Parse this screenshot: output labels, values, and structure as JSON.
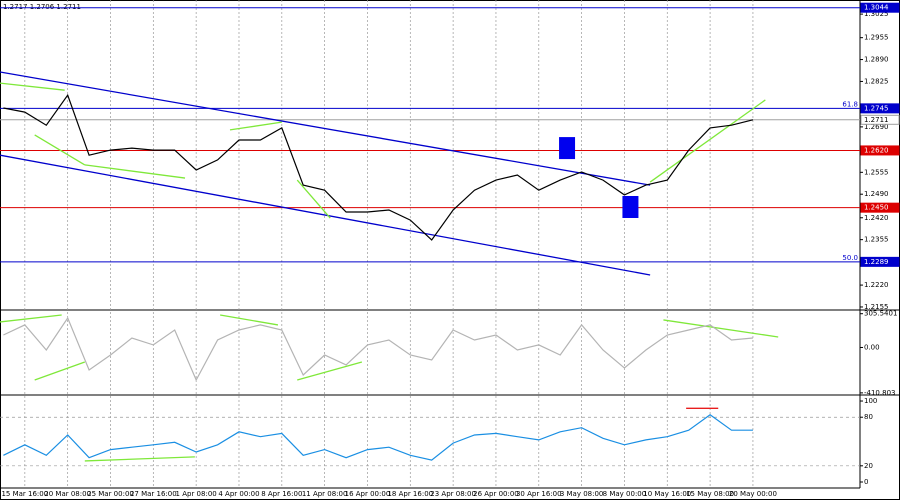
{
  "chart_data": [
    {
      "type": "line",
      "ohlc_text": "1.2717 1.2706 1.2711",
      "x": [
        -0.5,
        0,
        0.5,
        1,
        1.5,
        2,
        2.5,
        3,
        3.5,
        4,
        4.5,
        5,
        5.5,
        6,
        6.5,
        7,
        7.5,
        8,
        8.5,
        9,
        9.5,
        10,
        10.5,
        11,
        11.5,
        12,
        12.5,
        13,
        13.5,
        14,
        14.5,
        15,
        15.5,
        16,
        16.5,
        17
      ],
      "series": [
        {
          "color": "#000000",
          "values": [
            1.2746,
            1.2734,
            1.2695,
            1.2784,
            1.2606,
            1.2621,
            1.2627,
            1.2621,
            1.2621,
            1.2562,
            1.2592,
            1.2651,
            1.2651,
            1.2687,
            1.2517,
            1.2502,
            1.2437,
            1.2437,
            1.2443,
            1.2413,
            1.2354,
            1.2443,
            1.2502,
            1.2532,
            1.2547,
            1.2502,
            1.2532,
            1.2556,
            1.2532,
            1.2488,
            1.2517,
            1.2532,
            1.2621,
            1.2687,
            1.2695,
            1.2711
          ]
        }
      ],
      "ylim": [
        1.2146,
        1.3058
      ],
      "yticks": [
        1.3025,
        1.2955,
        {
          "value": 1.289,
          "label": "1.2890"
        },
        1.2825,
        {
          "value": 1.269,
          "label": "1.2690"
        },
        1.2555,
        {
          "value": 1.249,
          "label": "1.2490"
        },
        {
          "value": 1.242,
          "label": "1.2420"
        },
        1.2355,
        {
          "value": 1.222,
          "label": "1.2220"
        },
        1.2155
      ],
      "levels": [
        {
          "value": 1.3044,
          "label": "1.3044",
          "color": "#0000cc",
          "text_color": "#ffffff"
        },
        {
          "value": 1.2745,
          "label": "1.2745",
          "color": "#0000cc",
          "text_color": "#ffffff",
          "fib_label": "61.8"
        },
        {
          "value": 1.2711,
          "label": "1.2711",
          "color": "#a0a0a0",
          "text_color": "#000000",
          "box_color": "#ffffff"
        },
        {
          "value": 1.262,
          "label": "1.2620",
          "color": "#dd0000",
          "text_color": "#ffffff"
        },
        {
          "value": 1.245,
          "label": "1.2450",
          "color": "#dd0000",
          "text_color": "#ffffff"
        },
        {
          "value": 1.2289,
          "label": "1.2289",
          "color": "#0000cc",
          "text_color": "#ffffff",
          "fib_label": "50.0"
        }
      ],
      "trendlines": [
        {
          "x": [
            -0.58,
            14.6
          ],
          "y": [
            1.2853,
            1.2517
          ],
          "color": "#0000cc"
        },
        {
          "x": [
            -0.58,
            14.6
          ],
          "y": [
            1.2606,
            1.225
          ],
          "color": "#0000cc"
        },
        {
          "x": [
            -0.58,
            0.93
          ],
          "y": [
            1.282,
            1.2799
          ],
          "color": "#7fe83a"
        },
        {
          "x": [
            0.23,
            1.4
          ],
          "y": [
            1.2666,
            1.2577
          ],
          "color": "#7fe83a"
        },
        {
          "x": [
            1.4,
            3.74
          ],
          "y": [
            1.2577,
            1.2538
          ],
          "color": "#7fe83a"
        },
        {
          "x": [
            4.79,
            6.0
          ],
          "y": [
            1.2681,
            1.2704
          ],
          "color": "#7fe83a"
        },
        {
          "x": [
            6.36,
            7.13
          ],
          "y": [
            1.2532,
            1.2419
          ],
          "color": "#7fe83a"
        },
        {
          "x": [
            14.6,
            17.29
          ],
          "y": [
            1.2526,
            1.277
          ],
          "color": "#7fe83a"
        }
      ],
      "markers": [
        {
          "x": 12.66,
          "y": 1.2627,
          "color": "#0000ee"
        },
        {
          "x": 14.14,
          "y": 1.2452,
          "color": "#0000ee"
        }
      ]
    },
    {
      "type": "line",
      "x": [
        -0.5,
        0,
        0.5,
        1,
        1.5,
        2,
        2.5,
        3,
        3.5,
        4,
        4.5,
        5,
        5.5,
        6,
        6.5,
        7,
        7.5,
        8,
        8.5,
        9,
        9.5,
        10,
        10.5,
        11,
        11.5,
        12,
        12.5,
        13,
        13.5,
        14,
        14.5,
        15,
        15.5,
        16,
        16.5,
        17
      ],
      "series": [
        {
          "color": "#b4b4b4",
          "values": [
            113,
            204,
            -23,
            267,
            -204,
            -68,
            86,
            23,
            158,
            -294,
            68,
            158,
            204,
            158,
            -249,
            -68,
            -158,
            23,
            68,
            -68,
            -113,
            158,
            68,
            113,
            -23,
            23,
            -68,
            204,
            -23,
            -186,
            -23,
            113,
            158,
            204,
            68,
            86
          ]
        }
      ],
      "ylim": [
        -430,
        330
      ],
      "yticks": [
        305.5401,
        {
          "value": 0,
          "label": "0.00"
        },
        -410.803
      ],
      "trendlines": [
        {
          "x": [
            -0.58,
            0.86
          ],
          "y": [
            231,
            294
          ],
          "color": "#7fe83a"
        },
        {
          "x": [
            0.23,
            1.4
          ],
          "y": [
            -294,
            -131
          ],
          "color": "#7fe83a"
        },
        {
          "x": [
            4.56,
            5.91
          ],
          "y": [
            294,
            204
          ],
          "color": "#7fe83a"
        },
        {
          "x": [
            6.36,
            7.87
          ],
          "y": [
            -294,
            -131
          ],
          "color": "#7fe83a"
        },
        {
          "x": [
            14.91,
            17.59
          ],
          "y": [
            249,
            95
          ],
          "color": "#7fe83a"
        }
      ]
    },
    {
      "type": "line",
      "x": [
        -0.5,
        0,
        0.5,
        1,
        1.5,
        2,
        2.5,
        3,
        3.5,
        4,
        4.5,
        5,
        5.5,
        6,
        6.5,
        7,
        7.5,
        8,
        8.5,
        9,
        9.5,
        10,
        10.5,
        11,
        11.5,
        12,
        12.5,
        13,
        13.5,
        14,
        14.5,
        15,
        15.5,
        16,
        16.5,
        17
      ],
      "series": [
        {
          "color": "#1a8fe3",
          "values": [
            33,
            46,
            33,
            58,
            30,
            40,
            43,
            46,
            49,
            37,
            46,
            62,
            56,
            60,
            33,
            40,
            30,
            40,
            43,
            33,
            27,
            48,
            58,
            60,
            56,
            52,
            62,
            67,
            54,
            46,
            52,
            56,
            64,
            83,
            64,
            64
          ]
        }
      ],
      "ylim": [
        -7.4,
        106.2
      ],
      "yticks": [
        100,
        80,
        20,
        0
      ],
      "level_lines": [
        80,
        20
      ],
      "trendlines": [
        {
          "x": [
            1.4,
            3.97
          ],
          "y": [
            26,
            31
          ],
          "color": "#7fe83a"
        },
        {
          "x": [
            15.44,
            16.19
          ],
          "y": [
            91,
            91
          ],
          "color": "#e81e1e"
        }
      ],
      "xlim": [
        -0.58,
        19.5
      ],
      "xticks": [
        {
          "value": 0,
          "label": "15 Mar 16:00"
        },
        {
          "value": 1,
          "label": "20 Mar 08:00"
        },
        {
          "value": 2,
          "label": "25 Mar 00:00"
        },
        {
          "value": 3,
          "label": "27 Mar 16:00"
        },
        {
          "value": 4,
          "label": "1 Apr 08:00"
        },
        {
          "value": 5,
          "label": "4 Apr 00:00"
        },
        {
          "value": 6,
          "label": "8 Apr 16:00"
        },
        {
          "value": 7,
          "label": "11 Apr 08:00"
        },
        {
          "value": 8,
          "label": "16 Apr 00:00"
        },
        {
          "value": 9,
          "label": "18 Apr 16:00"
        },
        {
          "value": 10,
          "label": "23 Apr 08:00"
        },
        {
          "value": 11,
          "label": "26 Apr 00:00"
        },
        {
          "value": 12,
          "label": "30 Apr 16:00"
        },
        {
          "value": 13,
          "label": "3 May 08:00"
        },
        {
          "value": 14,
          "label": "8 May 00:00"
        },
        {
          "value": 15,
          "label": "10 May 16:00"
        },
        {
          "value": 16,
          "label": "15 May 08:00"
        },
        {
          "value": 17,
          "label": "20 May 00:00"
        }
      ]
    }
  ]
}
